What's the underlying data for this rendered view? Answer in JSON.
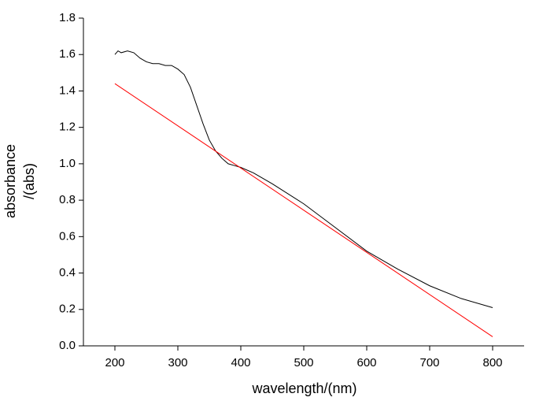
{
  "chart_data": {
    "type": "line",
    "xlabel": "wavelength/(nm)",
    "ylabel": [
      "absorbance",
      "/(abs)"
    ],
    "xlim": [
      150,
      850
    ],
    "ylim": [
      0,
      1.8
    ],
    "xticks": [
      200,
      300,
      400,
      500,
      600,
      700,
      800
    ],
    "yticks": [
      {
        "value": 0,
        "label": "0.0"
      },
      {
        "value": 0.2,
        "label": "0.2"
      },
      {
        "value": 0.4,
        "label": "0.4"
      },
      {
        "value": 0.6,
        "label": "0.6"
      },
      {
        "value": 0.8,
        "label": "0.8"
      },
      {
        "value": 1.0,
        "label": "1.0"
      },
      {
        "value": 1.2,
        "label": "1.2"
      },
      {
        "value": 1.4,
        "label": "1.4"
      },
      {
        "value": 1.6,
        "label": "1.6"
      },
      {
        "value": 1.8,
        "label": "1.8"
      }
    ],
    "series": [
      {
        "color": "#000000",
        "x": [
          200,
          205,
          210,
          220,
          230,
          240,
          250,
          260,
          270,
          280,
          290,
          300,
          310,
          320,
          330,
          340,
          350,
          360,
          370,
          380,
          390,
          400,
          420,
          450,
          500,
          550,
          600,
          650,
          700,
          750,
          800
        ],
        "values": [
          1.6,
          1.62,
          1.61,
          1.62,
          1.61,
          1.58,
          1.56,
          1.55,
          1.55,
          1.54,
          1.54,
          1.52,
          1.49,
          1.42,
          1.32,
          1.22,
          1.13,
          1.07,
          1.03,
          1.0,
          0.99,
          0.98,
          0.95,
          0.89,
          0.78,
          0.65,
          0.52,
          0.42,
          0.33,
          0.26,
          0.21
        ]
      },
      {
        "color": "#ff0000",
        "x": [
          200,
          800
        ],
        "values": [
          1.44,
          0.05
        ]
      }
    ]
  }
}
